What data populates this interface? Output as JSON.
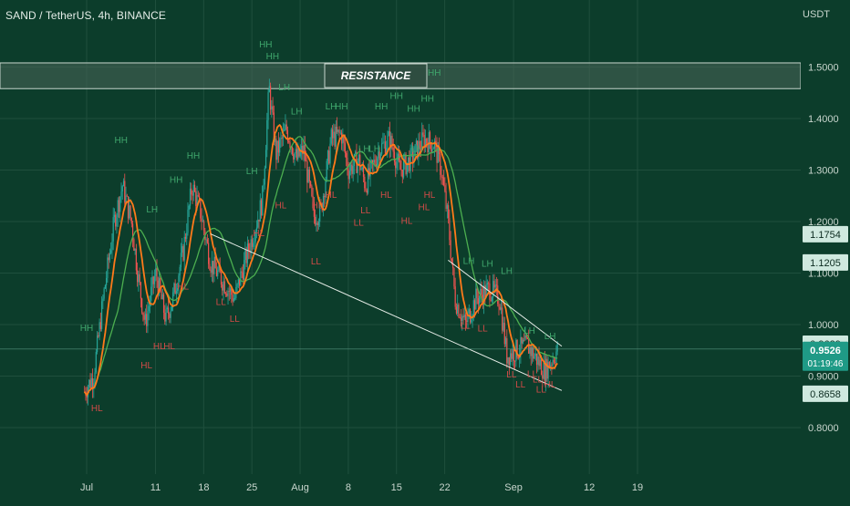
{
  "header": {
    "symbol_title": "SAND / TetherUS, 4h, BINANCE",
    "currency": "USDT"
  },
  "chart_data": {
    "type": "candlestick",
    "timeframe": "4h",
    "exchange": "BINANCE",
    "y_axis": {
      "ticks": [
        "1.5000",
        "1.4000",
        "1.3000",
        "1.2000",
        "1.1000",
        "1.0000",
        "0.9000",
        "0.8000"
      ],
      "ylim": [
        0.75,
        1.58
      ]
    },
    "x_axis": {
      "ticks": [
        "Jul",
        "11",
        "18",
        "25",
        "Aug",
        "8",
        "15",
        "22",
        "Sep",
        "12",
        "19"
      ]
    },
    "resistance_zone": {
      "label": "RESISTANCE",
      "low": 1.458,
      "high": 1.508
    },
    "price_labels": [
      {
        "value": 1.1754,
        "text": "1.1754",
        "style": "light"
      },
      {
        "value": 1.1205,
        "text": "1.1205",
        "style": "light"
      },
      {
        "value": 0.9629,
        "text": "0.9629",
        "style": "light"
      },
      {
        "value": 0.9526,
        "text": "0.9526",
        "sub": "01:19:46",
        "style": "current"
      },
      {
        "value": 0.8658,
        "text": "0.8658",
        "style": "light"
      }
    ],
    "trend_lines": [
      {
        "name": "lower-support-line",
        "from": {
          "day": 18,
          "price": 1.176
        },
        "to": {
          "day": 69,
          "price": 0.872
        }
      },
      {
        "name": "channel-upper-line",
        "from": {
          "day": 52.5,
          "price": 1.125
        },
        "to": {
          "day": 69,
          "price": 0.958
        }
      }
    ],
    "swing_markers": [
      {
        "text": "HH",
        "day": 0,
        "price": 0.988,
        "kind": "high"
      },
      {
        "text": "HL",
        "day": 1.5,
        "price": 0.832,
        "kind": "low"
      },
      {
        "text": "HH",
        "day": 5,
        "price": 1.352,
        "kind": "high"
      },
      {
        "text": "LH",
        "day": 9.5,
        "price": 1.218,
        "kind": "high"
      },
      {
        "text": "HL",
        "day": 8.7,
        "price": 0.915,
        "kind": "low"
      },
      {
        "text": "HL",
        "day": 10.5,
        "price": 0.952,
        "kind": "low"
      },
      {
        "text": "HL",
        "day": 12,
        "price": 0.952,
        "kind": "low"
      },
      {
        "text": "HH",
        "day": 13,
        "price": 1.275,
        "kind": "high"
      },
      {
        "text": "HH",
        "day": 15.5,
        "price": 1.322,
        "kind": "high"
      },
      {
        "text": "HL",
        "day": 14,
        "price": 1.068,
        "kind": "low"
      },
      {
        "text": "LL",
        "day": 19.5,
        "price": 1.038,
        "kind": "low"
      },
      {
        "text": "LL",
        "day": 21.5,
        "price": 1.005,
        "kind": "low"
      },
      {
        "text": "LH",
        "day": 24,
        "price": 1.292,
        "kind": "high"
      },
      {
        "text": "HL",
        "day": 25,
        "price": 1.172,
        "kind": "low"
      },
      {
        "text": "HH",
        "day": 26,
        "price": 1.538,
        "kind": "high"
      },
      {
        "text": "HH",
        "day": 27,
        "price": 1.515,
        "kind": "high"
      },
      {
        "text": "LH",
        "day": 28.7,
        "price": 1.455,
        "kind": "high"
      },
      {
        "text": "HL",
        "day": 28.2,
        "price": 1.226,
        "kind": "low"
      },
      {
        "text": "LH",
        "day": 30.5,
        "price": 1.408,
        "kind": "high"
      },
      {
        "text": "HL",
        "day": 33.5,
        "price": 1.226,
        "kind": "low"
      },
      {
        "text": "LL",
        "day": 33.3,
        "price": 1.117,
        "kind": "low"
      },
      {
        "text": "LH",
        "day": 35.5,
        "price": 1.418,
        "kind": "high"
      },
      {
        "text": "HL",
        "day": 35.5,
        "price": 1.246,
        "kind": "low"
      },
      {
        "text": "HH",
        "day": 37,
        "price": 1.418,
        "kind": "high"
      },
      {
        "text": "LL",
        "day": 39.5,
        "price": 1.192,
        "kind": "low"
      },
      {
        "text": "LH",
        "day": 40.3,
        "price": 1.335,
        "kind": "high"
      },
      {
        "text": "LL",
        "day": 40.5,
        "price": 1.216,
        "kind": "low"
      },
      {
        "text": "LH",
        "day": 41.8,
        "price": 1.335,
        "kind": "high"
      },
      {
        "text": "HH",
        "day": 42.8,
        "price": 1.418,
        "kind": "high"
      },
      {
        "text": "HH",
        "day": 45,
        "price": 1.438,
        "kind": "high"
      },
      {
        "text": "HL",
        "day": 43.5,
        "price": 1.246,
        "kind": "low"
      },
      {
        "text": "HL",
        "day": 46.5,
        "price": 1.196,
        "kind": "low"
      },
      {
        "text": "HH",
        "day": 47.5,
        "price": 1.413,
        "kind": "high"
      },
      {
        "text": "LH",
        "day": 48,
        "price": 1.335,
        "kind": "high"
      },
      {
        "text": "HL",
        "day": 49,
        "price": 1.222,
        "kind": "low"
      },
      {
        "text": "HH",
        "day": 49.5,
        "price": 1.433,
        "kind": "high"
      },
      {
        "text": "HH",
        "day": 50.5,
        "price": 1.483,
        "kind": "high"
      },
      {
        "text": "HL",
        "day": 49.8,
        "price": 1.246,
        "kind": "low"
      },
      {
        "text": "LH",
        "day": 55.5,
        "price": 1.118,
        "kind": "high"
      },
      {
        "text": "LH",
        "day": 58.2,
        "price": 1.112,
        "kind": "high"
      },
      {
        "text": "LH",
        "day": 61,
        "price": 1.098,
        "kind": "high"
      },
      {
        "text": "LL",
        "day": 55,
        "price": 0.992,
        "kind": "low"
      },
      {
        "text": "LL",
        "day": 57.5,
        "price": 0.987,
        "kind": "low"
      },
      {
        "text": "LL",
        "day": 61.7,
        "price": 0.897,
        "kind": "low"
      },
      {
        "text": "LL",
        "day": 63,
        "price": 0.878,
        "kind": "low"
      },
      {
        "text": "LL",
        "day": 66,
        "price": 0.868,
        "kind": "low"
      },
      {
        "text": "HL",
        "day": 67.3,
        "price": 0.878,
        "kind": "low"
      },
      {
        "text": "LL",
        "day": 64.7,
        "price": 0.898,
        "kind": "low"
      },
      {
        "text": "LH",
        "day": 64.3,
        "price": 0.982,
        "kind": "high"
      },
      {
        "text": "LH",
        "day": 67.3,
        "price": 0.972,
        "kind": "high"
      },
      {
        "text": "LL",
        "day": 65.5,
        "price": 0.888,
        "kind": "low"
      }
    ],
    "price_path": [
      [
        -0.3,
        0.87
      ],
      [
        1,
        0.9
      ],
      [
        2.5,
        1.06
      ],
      [
        4,
        1.2
      ],
      [
        5.2,
        1.27
      ],
      [
        6.5,
        1.2
      ],
      [
        7.5,
        1.09
      ],
      [
        8.5,
        1.0
      ],
      [
        9.2,
        1.05
      ],
      [
        10,
        1.1
      ],
      [
        11.5,
        1.01
      ],
      [
        12.5,
        1.05
      ],
      [
        14,
        1.14
      ],
      [
        15.3,
        1.27
      ],
      [
        16.5,
        1.22
      ],
      [
        18,
        1.12
      ],
      [
        19.5,
        1.09
      ],
      [
        21.5,
        1.05
      ],
      [
        22.5,
        1.1
      ],
      [
        24.5,
        1.19
      ],
      [
        25.5,
        1.24
      ],
      [
        26.5,
        1.46
      ],
      [
        27.5,
        1.33
      ],
      [
        29,
        1.38
      ],
      [
        30.5,
        1.32
      ],
      [
        31.5,
        1.34
      ],
      [
        33,
        1.21
      ],
      [
        34,
        1.22
      ],
      [
        35.5,
        1.36
      ],
      [
        37,
        1.37
      ],
      [
        38,
        1.3
      ],
      [
        39.5,
        1.32
      ],
      [
        40.5,
        1.27
      ],
      [
        42.5,
        1.34
      ],
      [
        44,
        1.36
      ],
      [
        45.5,
        1.3
      ],
      [
        47,
        1.32
      ],
      [
        49,
        1.36
      ],
      [
        50.5,
        1.35
      ],
      [
        51.5,
        1.3
      ],
      [
        52.5,
        1.2
      ],
      [
        53.5,
        1.05
      ],
      [
        55,
        1.0
      ],
      [
        56.5,
        1.05
      ],
      [
        58.5,
        1.07
      ],
      [
        60,
        1.05
      ],
      [
        61,
        0.94
      ],
      [
        62.5,
        0.95
      ],
      [
        64,
        0.96
      ],
      [
        65,
        0.94
      ],
      [
        66.5,
        0.91
      ],
      [
        67.5,
        0.93
      ],
      [
        68.5,
        0.955
      ]
    ]
  }
}
